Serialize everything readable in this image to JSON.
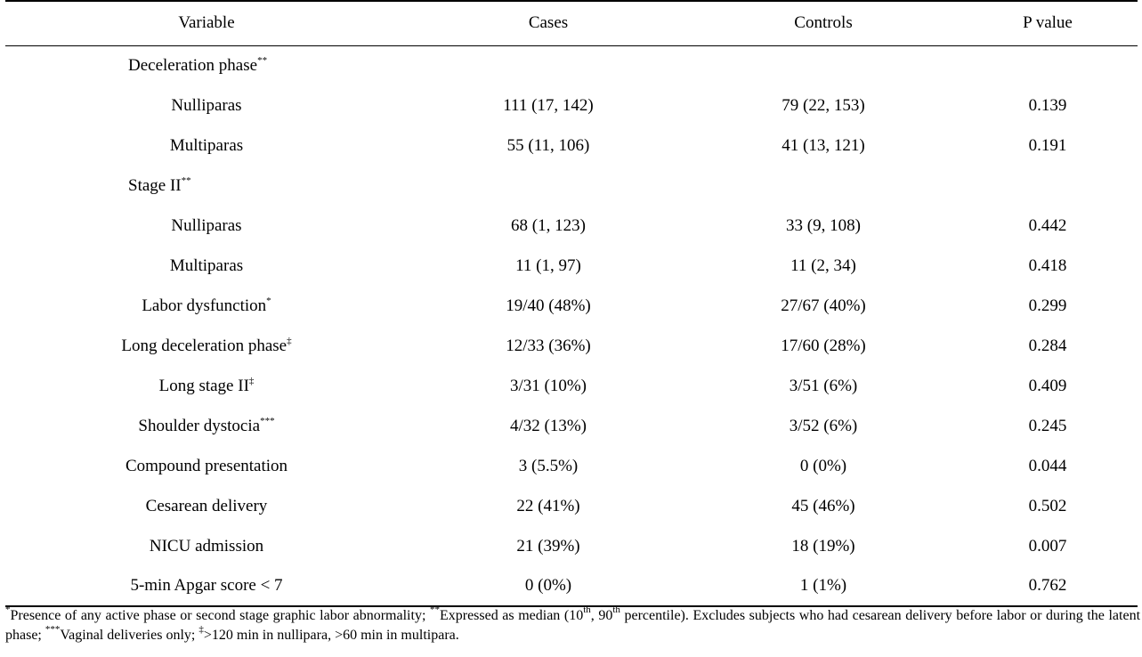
{
  "table": {
    "headers": [
      "Variable",
      "Cases",
      "Controls",
      "P value"
    ],
    "rows": [
      {
        "variable": "Deceleration phase",
        "mark": "**",
        "section": true,
        "cases": "",
        "controls": "",
        "p": ""
      },
      {
        "variable": "Nulliparas",
        "mark": "",
        "section": false,
        "cases": "111 (17, 142)",
        "controls": "79 (22, 153)",
        "p": "0.139"
      },
      {
        "variable": "Multiparas",
        "mark": "",
        "section": false,
        "cases": "55 (11, 106)",
        "controls": "41 (13, 121)",
        "p": "0.191"
      },
      {
        "variable": "Stage II",
        "mark": "**",
        "section": true,
        "cases": "",
        "controls": "",
        "p": ""
      },
      {
        "variable": "Nulliparas",
        "mark": "",
        "section": false,
        "cases": "68 (1, 123)",
        "controls": "33 (9, 108)",
        "p": "0.442"
      },
      {
        "variable": "Multiparas",
        "mark": "",
        "section": false,
        "cases": "11 (1, 97)",
        "controls": "11 (2, 34)",
        "p": "0.418"
      },
      {
        "variable": "Labor dysfunction",
        "mark": "*",
        "section": false,
        "cases": "19/40 (48%)",
        "controls": "27/67 (40%)",
        "p": "0.299"
      },
      {
        "variable": "Long deceleration phase",
        "mark": "‡",
        "section": false,
        "cases": "12/33 (36%)",
        "controls": "17/60 (28%)",
        "p": "0.284"
      },
      {
        "variable": "Long stage II",
        "mark": "‡",
        "section": false,
        "cases": "3/31 (10%)",
        "controls": "3/51 (6%)",
        "p": "0.409"
      },
      {
        "variable": "Shoulder dystocia",
        "mark": "***",
        "section": false,
        "cases": "4/32 (13%)",
        "controls": "3/52 (6%)",
        "p": "0.245"
      },
      {
        "variable": "Compound presentation",
        "mark": "",
        "section": false,
        "cases": "3 (5.5%)",
        "controls": "0 (0%)",
        "p": "0.044"
      },
      {
        "variable": "Cesarean delivery",
        "mark": "",
        "section": false,
        "cases": "22 (41%)",
        "controls": "45 (46%)",
        "p": "0.502"
      },
      {
        "variable": "NICU admission",
        "mark": "",
        "section": false,
        "cases": "21 (39%)",
        "controls": "18 (19%)",
        "p": "0.007"
      },
      {
        "variable": "5-min Apgar score < 7",
        "mark": "",
        "section": false,
        "cases": "0 (0%)",
        "controls": "1 (1%)",
        "p": "0.762"
      }
    ]
  },
  "footnote": {
    "m1": "*",
    "t1": "Presence of any active phase or second stage graphic labor abnormality; ",
    "m2": "**",
    "t2a": "Expressed as median (10",
    "s1": "th",
    "t2b": ", 90",
    "s2": "th",
    "t2c": " percentile). Excludes subjects who had cesarean delivery before labor or during the latent phase; ",
    "m3": "***",
    "t3": "Vaginal deliveries only; ",
    "m4": "‡",
    "t4": ">120 min in nullipara, >60 min in multipara."
  }
}
